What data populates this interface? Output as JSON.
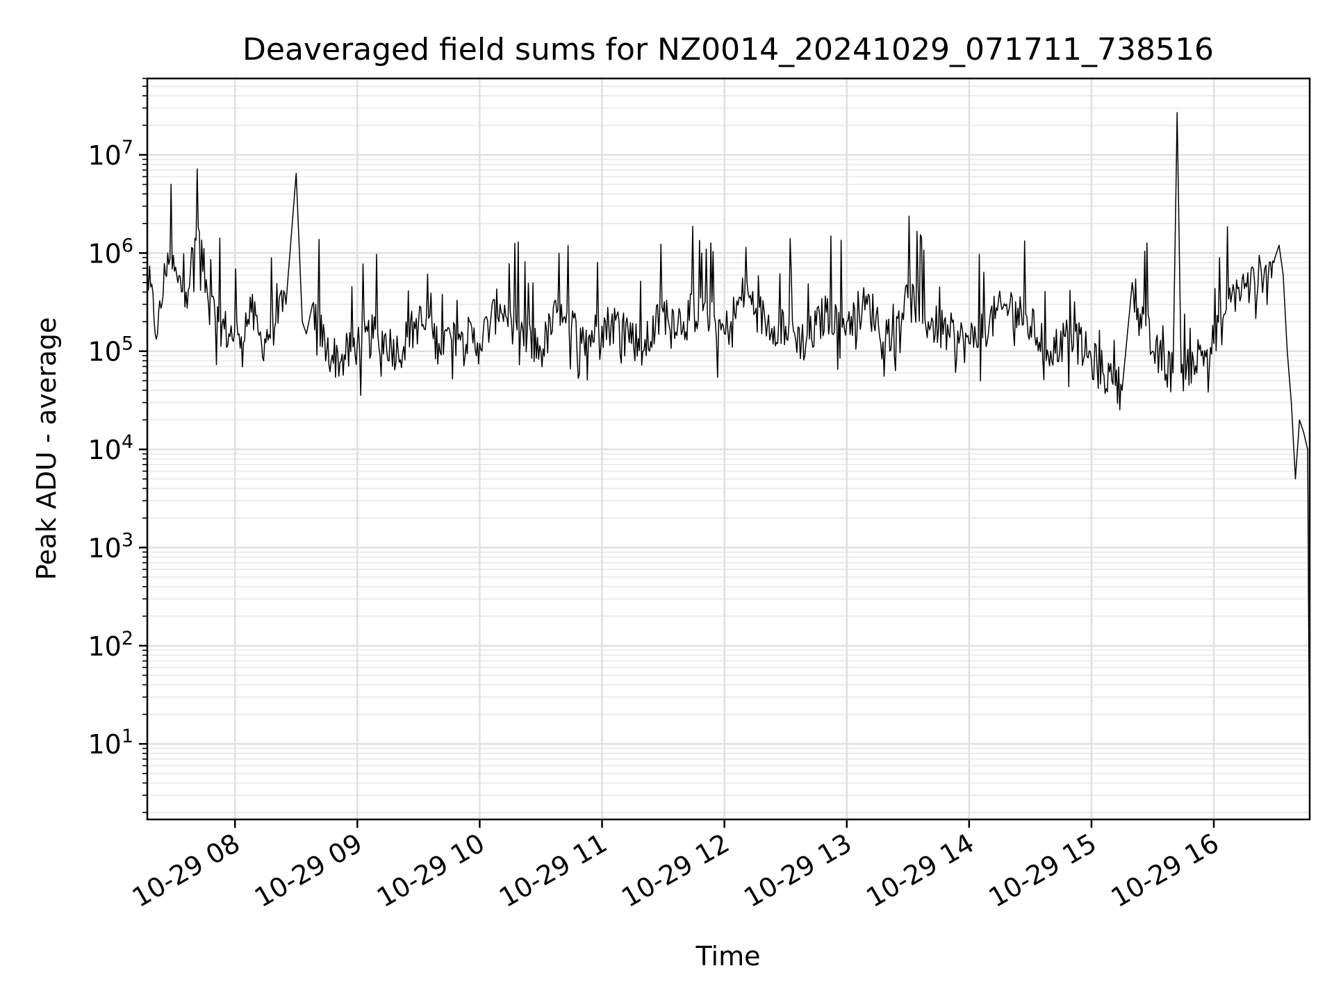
{
  "chart_data": {
    "type": "line",
    "title": "Deaveraged field sums for NZ0014_20241029_071711_738516",
    "xlabel": "Time",
    "ylabel": "Peak ADU - average",
    "yscale": "log",
    "grid": true,
    "xlim": [
      "10-29 07:17",
      "10-29 16:47"
    ],
    "ylim": [
      1.7,
      60000000
    ],
    "x_ticks": [
      "10-29 08",
      "10-29 09",
      "10-29 10",
      "10-29 11",
      "10-29 12",
      "10-29 13",
      "10-29 14",
      "10-29 15",
      "10-29 16"
    ],
    "y_ticks": [
      {
        "base": "10",
        "exp": "1",
        "value": 10
      },
      {
        "base": "10",
        "exp": "2",
        "value": 100
      },
      {
        "base": "10",
        "exp": "3",
        "value": 1000
      },
      {
        "base": "10",
        "exp": "4",
        "value": 10000
      },
      {
        "base": "10",
        "exp": "5",
        "value": 100000
      },
      {
        "base": "10",
        "exp": "6",
        "value": 1000000
      },
      {
        "base": "10",
        "exp": "7",
        "value": 10000000
      }
    ],
    "series": [
      {
        "color": "#000000",
        "x": [
          "07:17",
          "07:22",
          "07:27",
          "07:32",
          "07:36",
          "07:42",
          "07:47",
          "07:52",
          "07:57",
          "08:02",
          "08:08",
          "08:13",
          "08:20",
          "08:25",
          "08:30",
          "08:33",
          "08:35",
          "08:38",
          "08:45",
          "08:52",
          "09:00",
          "09:10",
          "09:20",
          "09:30",
          "09:40",
          "09:50",
          "10:00",
          "10:10",
          "10:20",
          "10:30",
          "10:40",
          "10:50",
          "11:00",
          "11:10",
          "11:20",
          "11:30",
          "11:40",
          "11:50",
          "12:00",
          "12:10",
          "12:20",
          "12:30",
          "12:40",
          "12:50",
          "13:00",
          "13:10",
          "13:20",
          "13:30",
          "13:40",
          "13:50",
          "14:00",
          "14:10",
          "14:20",
          "14:30",
          "14:40",
          "14:50",
          "15:00",
          "15:10",
          "15:15",
          "15:20",
          "15:30",
          "15:40",
          "15:42",
          "15:44",
          "15:50",
          "16:00",
          "16:10",
          "16:20",
          "16:25",
          "16:30",
          "16:32",
          "16:34",
          "16:36",
          "16:38",
          "16:40",
          "16:42",
          "16:44",
          "16:46",
          "16:47"
        ],
        "y": [
          600000,
          150000,
          1000000,
          500000,
          400000,
          1800000,
          300000,
          200000,
          150000,
          150000,
          250000,
          120000,
          200000,
          300000,
          6500000,
          200000,
          150000,
          300000,
          100000,
          80000,
          120000,
          150000,
          100000,
          200000,
          120000,
          150000,
          120000,
          300000,
          150000,
          100000,
          300000,
          120000,
          180000,
          200000,
          100000,
          250000,
          200000,
          300000,
          150000,
          400000,
          200000,
          180000,
          120000,
          250000,
          200000,
          300000,
          150000,
          350000,
          200000,
          150000,
          120000,
          200000,
          300000,
          180000,
          100000,
          150000,
          80000,
          50000,
          40000,
          500000,
          100000,
          60000,
          27000000,
          60000,
          80000,
          120000,
          400000,
          500000,
          700000,
          900000,
          1200000,
          600000,
          100000,
          30000,
          5000,
          20000,
          15000,
          10000,
          3
        ]
      }
    ]
  }
}
